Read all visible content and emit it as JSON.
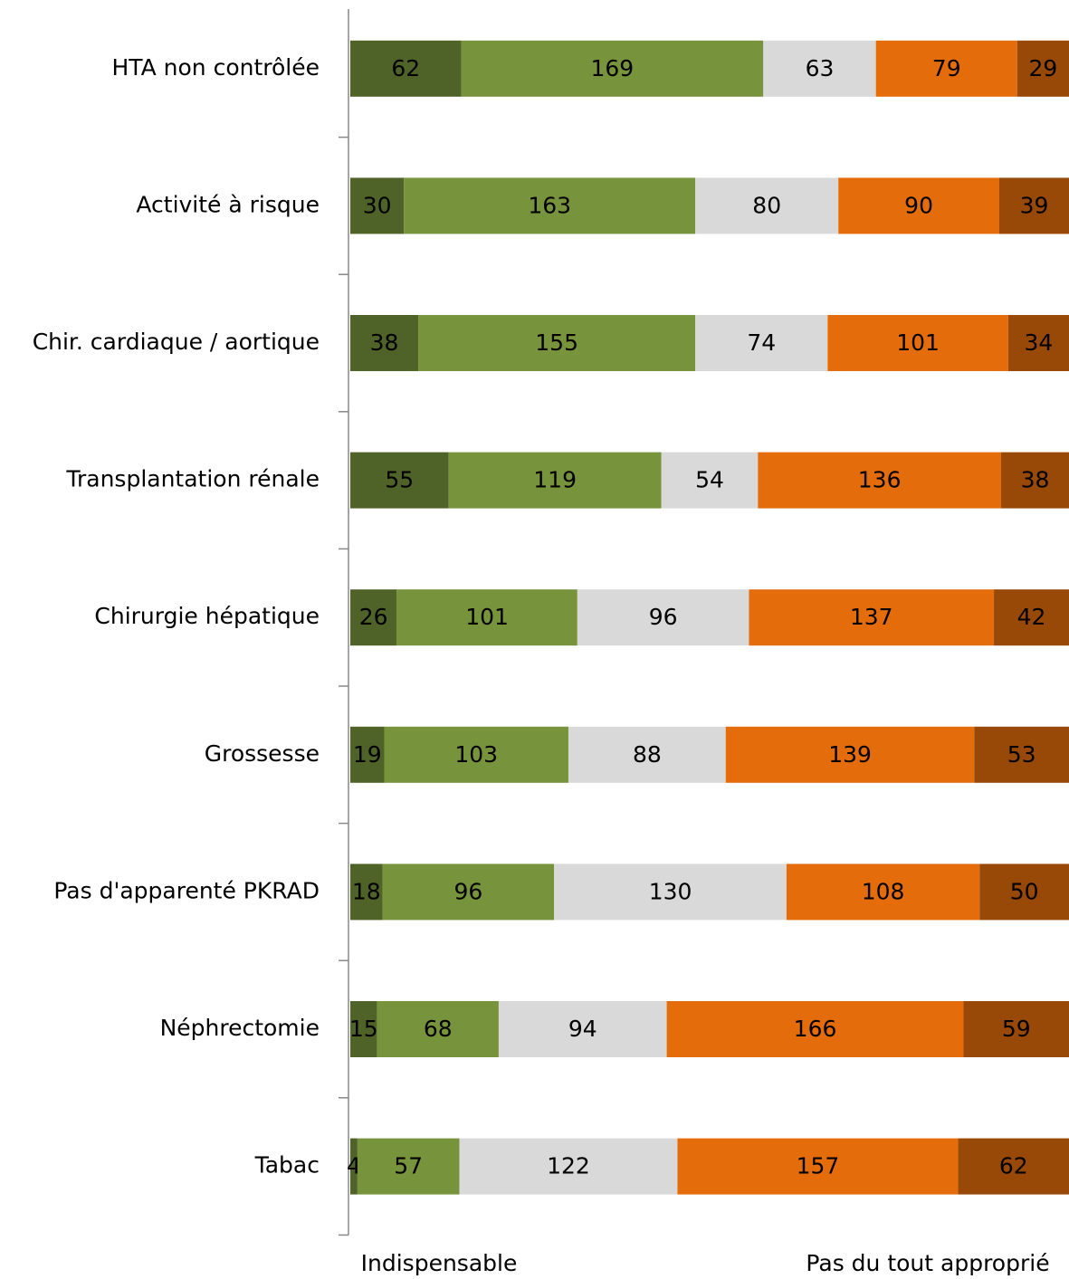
{
  "chart_data": {
    "type": "bar",
    "orientation": "horizontal",
    "stacked": true,
    "categories": [
      "HTA non contrôlée",
      "Activité à risque",
      "Chir. cardiaque / aortique",
      "Transplantation rénale",
      "Chirurgie hépatique",
      "Grossesse",
      "Pas d'apparenté PKRAD",
      "Néphrectomie",
      "Tabac"
    ],
    "series": [
      {
        "color": "#4f6228",
        "values": [
          62,
          30,
          38,
          55,
          26,
          19,
          18,
          15,
          4
        ]
      },
      {
        "color": "#77933c",
        "values": [
          169,
          163,
          155,
          119,
          101,
          103,
          96,
          68,
          57
        ]
      },
      {
        "color": "#d9d9d9",
        "values": [
          63,
          80,
          74,
          54,
          96,
          88,
          130,
          94,
          122
        ]
      },
      {
        "color": "#e46c0a",
        "values": [
          79,
          90,
          101,
          136,
          137,
          139,
          108,
          166,
          157
        ]
      },
      {
        "color": "#984807",
        "values": [
          29,
          39,
          34,
          38,
          42,
          53,
          50,
          59,
          62
        ]
      }
    ],
    "annotations": [
      "Indispensable",
      "Pas du tout approprié"
    ]
  }
}
